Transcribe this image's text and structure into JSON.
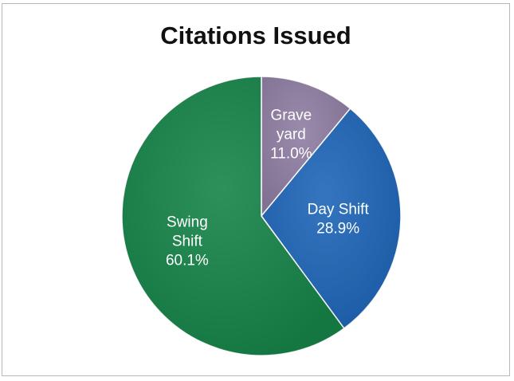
{
  "chart_data": {
    "type": "pie",
    "title": "Citations Issued",
    "slices": [
      {
        "label_lines": [
          "Grave",
          "yard"
        ],
        "percent_label": "11.0%",
        "value": 11.0,
        "color": "#8f7ea3"
      },
      {
        "label_lines": [
          "Day Shift"
        ],
        "percent_label": "28.9%",
        "value": 28.9,
        "color": "#1f66b8"
      },
      {
        "label_lines": [
          "Swing",
          "Shift"
        ],
        "percent_label": "60.1%",
        "value": 60.1,
        "color": "#168449"
      }
    ],
    "start_angle": "12 o'clock",
    "direction": "clockwise",
    "legend": "none"
  }
}
